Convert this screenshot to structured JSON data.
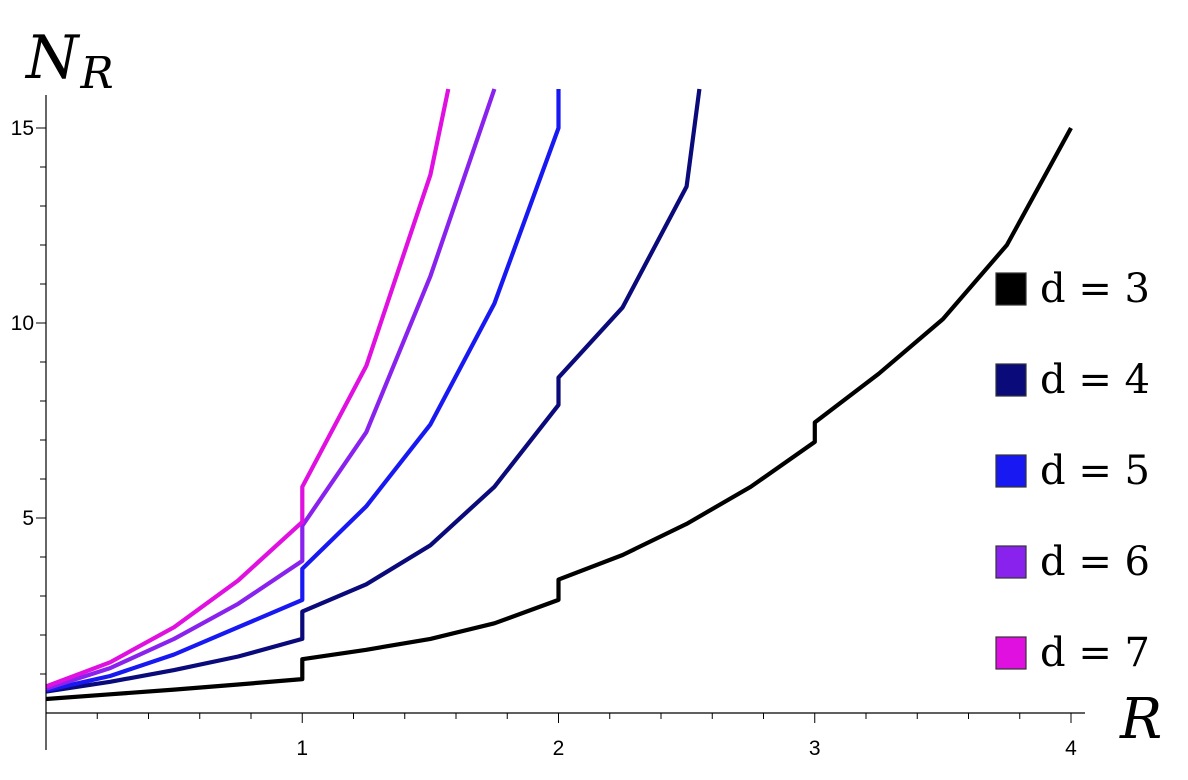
{
  "chart_data": {
    "type": "line",
    "ylabel": "N",
    "ylabel_sub": "R",
    "xlabel": "R",
    "xlim": [
      0,
      4.06
    ],
    "ylim": [
      0,
      16
    ],
    "x_ticks": [
      1,
      2,
      3,
      4
    ],
    "x_tick_labels": [
      "1",
      "2",
      "3",
      "4"
    ],
    "y_ticks": [
      5,
      10,
      15
    ],
    "y_tick_labels": [
      "5",
      "10",
      "15"
    ],
    "grid": false,
    "legend_position": "right",
    "series": [
      {
        "name": "d = 3",
        "legend_label": "d = 3",
        "color": "#000000",
        "points": [
          [
            0,
            0.36
          ],
          [
            0.25,
            0.48
          ],
          [
            0.5,
            0.6
          ],
          [
            0.75,
            0.73
          ],
          [
            1.0,
            0.87
          ],
          [
            1.0,
            1.38
          ],
          [
            1.25,
            1.62
          ],
          [
            1.5,
            1.9
          ],
          [
            1.75,
            2.3
          ],
          [
            2.0,
            2.9
          ],
          [
            2.0,
            3.42
          ],
          [
            2.25,
            4.05
          ],
          [
            2.5,
            4.85
          ],
          [
            2.75,
            5.8
          ],
          [
            3.0,
            6.95
          ],
          [
            3.0,
            7.45
          ],
          [
            3.25,
            8.7
          ],
          [
            3.5,
            10.1
          ],
          [
            3.75,
            12.0
          ],
          [
            4.0,
            15.0
          ]
        ]
      },
      {
        "name": "d = 4",
        "legend_label": "d = 4",
        "color": "#0a0a7a",
        "points": [
          [
            0,
            0.55
          ],
          [
            0.25,
            0.8
          ],
          [
            0.5,
            1.1
          ],
          [
            0.75,
            1.45
          ],
          [
            1.0,
            1.9
          ],
          [
            1.0,
            2.6
          ],
          [
            1.25,
            3.3
          ],
          [
            1.5,
            4.3
          ],
          [
            1.75,
            5.8
          ],
          [
            2.0,
            7.9
          ],
          [
            2.0,
            8.6
          ],
          [
            2.25,
            10.4
          ],
          [
            2.5,
            13.5
          ],
          [
            2.55,
            16
          ]
        ]
      },
      {
        "name": "d = 5",
        "legend_label": "d = 5",
        "color": "#1818f2",
        "points": [
          [
            0,
            0.58
          ],
          [
            0.25,
            0.95
          ],
          [
            0.5,
            1.5
          ],
          [
            0.75,
            2.2
          ],
          [
            1.0,
            2.9
          ],
          [
            1.0,
            3.7
          ],
          [
            1.25,
            5.3
          ],
          [
            1.5,
            7.4
          ],
          [
            1.75,
            10.5
          ],
          [
            2.0,
            15.0
          ],
          [
            2.0,
            16
          ]
        ]
      },
      {
        "name": "d = 6",
        "legend_label": "d = 6",
        "color": "#8a22ee",
        "points": [
          [
            0,
            0.62
          ],
          [
            0.25,
            1.15
          ],
          [
            0.5,
            1.9
          ],
          [
            0.75,
            2.8
          ],
          [
            1.0,
            3.9
          ],
          [
            1.0,
            4.8
          ],
          [
            1.25,
            7.2
          ],
          [
            1.5,
            11.2
          ],
          [
            1.75,
            16
          ]
        ]
      },
      {
        "name": "d = 7",
        "legend_label": "d = 7",
        "color": "#e010e0",
        "points": [
          [
            0,
            0.68
          ],
          [
            0.25,
            1.3
          ],
          [
            0.5,
            2.2
          ],
          [
            0.75,
            3.4
          ],
          [
            1.0,
            4.9
          ],
          [
            1.0,
            5.8
          ],
          [
            1.25,
            8.9
          ],
          [
            1.5,
            13.8
          ],
          [
            1.57,
            16
          ]
        ]
      }
    ]
  }
}
